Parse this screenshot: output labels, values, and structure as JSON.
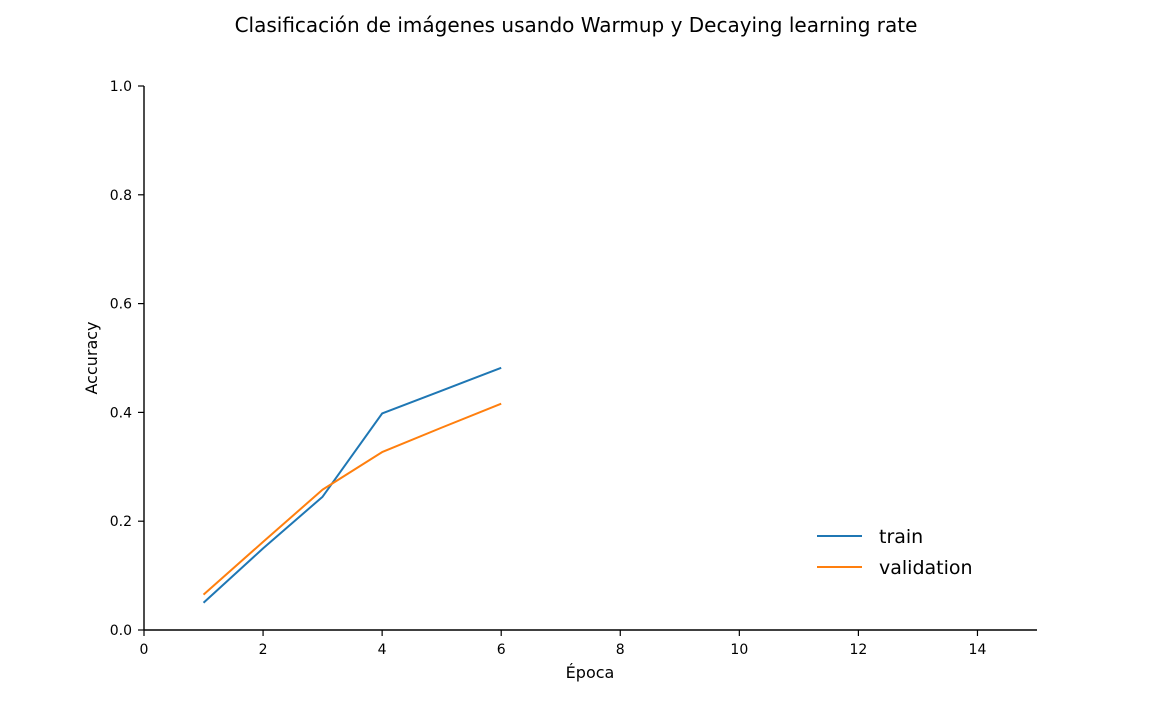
{
  "chart_data": {
    "type": "line",
    "title": "Clasificación de imágenes usando Warmup y Decaying learning rate",
    "xlabel": "Época",
    "ylabel": "Accuracy",
    "xlim": [
      0,
      15
    ],
    "ylim": [
      0,
      1.0
    ],
    "xticks": [
      0,
      2,
      4,
      6,
      8,
      10,
      12,
      14
    ],
    "yticks": [
      0.0,
      0.2,
      0.4,
      0.6,
      0.8,
      1.0
    ],
    "xtick_labels": [
      "0",
      "2",
      "4",
      "6",
      "8",
      "10",
      "12",
      "14"
    ],
    "ytick_labels": [
      "0.0",
      "0.2",
      "0.4",
      "0.6",
      "0.8",
      "1.0"
    ],
    "grid": false,
    "legend_position": "lower-right",
    "series": [
      {
        "name": "train",
        "color": "#1f77b4",
        "x": [
          1,
          2,
          3,
          4,
          5,
          6
        ],
        "y": [
          0.05,
          0.15,
          0.245,
          0.398,
          0.44,
          0.482
        ]
      },
      {
        "name": "validation",
        "color": "#ff7f0e",
        "x": [
          1,
          2,
          3,
          4,
          5,
          6
        ],
        "y": [
          0.065,
          0.162,
          0.258,
          0.327,
          0.372,
          0.416
        ]
      }
    ]
  }
}
